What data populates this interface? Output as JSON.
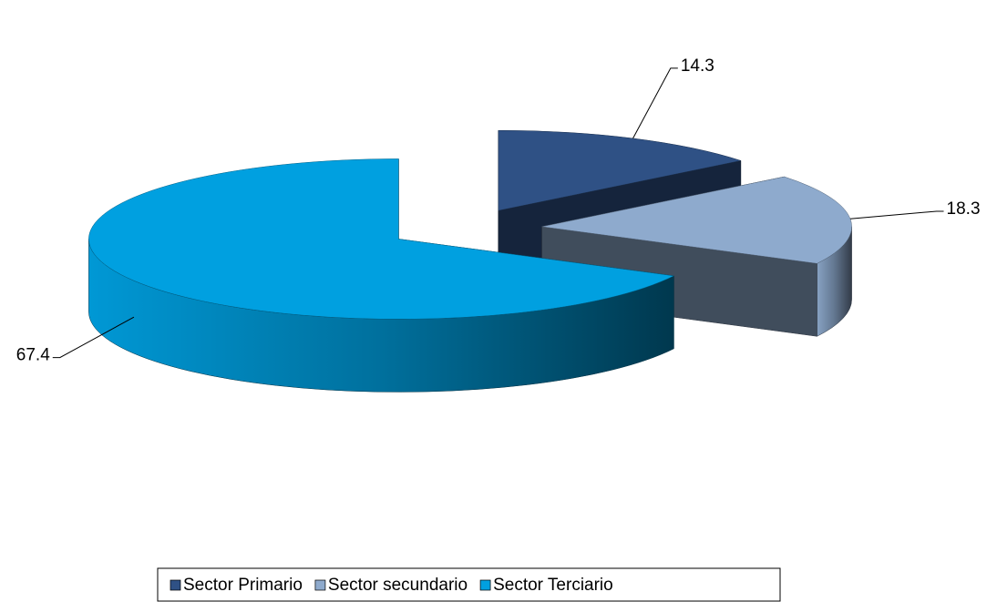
{
  "chart_data": {
    "type": "pie3d",
    "categories": [
      "Sector Primario",
      "Sector secundario",
      "Sector Terciario"
    ],
    "values": [
      14.3,
      18.3,
      67.4
    ],
    "colors": [
      "#2f5185",
      "#8eaacd",
      "#00a0e0"
    ],
    "legend": "bottom"
  }
}
